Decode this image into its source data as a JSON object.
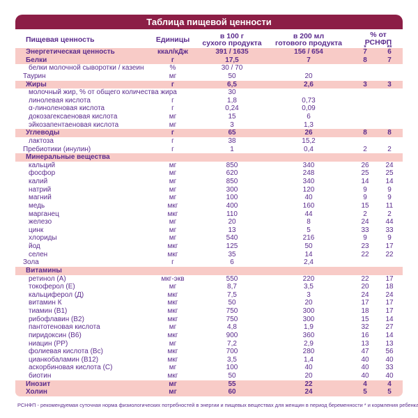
{
  "title": "Таблица пищевой ценности",
  "header": {
    "col_label": "Пищевая ценность",
    "col_units": "Единицы",
    "col_per100_line1": "в 100 г",
    "col_per100_line2": "сухого продукта",
    "col_per200_line1": "в 200 мл",
    "col_per200_line2": "готового продукта",
    "col_pct_line1": "% от",
    "col_pct_line2": "РСНФП",
    "ast1": "*",
    "ast2": "**"
  },
  "colors": {
    "banner": "#8c1e46",
    "row_highlight": "#f8cbc7",
    "text": "#5b2c8d"
  },
  "footnote": "РСНФП - рекомендуемая суточная норма физиологических потребностей в энергии и пищевых веществах для женщин в период беременности * и кормления ребенка **",
  "rows": [
    {
      "style": "group",
      "label": "Энергетическая ценность",
      "unit": "ккал/кДж",
      "v100": "391 / 1635",
      "v200": "156 / 654",
      "p1": "7",
      "p2": "6"
    },
    {
      "style": "group",
      "label": "Белки",
      "unit": "г",
      "v100": "17,5",
      "v200": "7",
      "p1": "8",
      "p2": "7"
    },
    {
      "style": "sub",
      "label": "белки молочной сыворотки / казеин",
      "unit": "%",
      "v100": "30 / 70",
      "v200": "",
      "p1": "",
      "p2": ""
    },
    {
      "style": "plain",
      "label": "Таурин",
      "unit": "мг",
      "v100": "50",
      "v200": "20",
      "p1": "",
      "p2": ""
    },
    {
      "style": "group",
      "label": "Жиры",
      "unit": "г",
      "v100": "6,5",
      "v200": "2,6",
      "p1": "3",
      "p2": "3"
    },
    {
      "style": "sub",
      "label": "молочный жир, % от общего количества жира",
      "unit": "",
      "v100": "30",
      "v200": "",
      "p1": "",
      "p2": ""
    },
    {
      "style": "sub",
      "label": "линолевая кислота",
      "unit": "г",
      "v100": "1,8",
      "v200": "0,73",
      "p1": "",
      "p2": ""
    },
    {
      "style": "sub",
      "label": "α-линоленовая кислота",
      "unit": "г",
      "v100": "0,24",
      "v200": "0,09",
      "p1": "",
      "p2": ""
    },
    {
      "style": "sub",
      "label": "докозагексаеновая кислота",
      "unit": "мг",
      "v100": "15",
      "v200": "6",
      "p1": "",
      "p2": ""
    },
    {
      "style": "sub",
      "label": "эйкозапентаеновая кислота",
      "unit": "мг",
      "v100": "3",
      "v200": "1,3",
      "p1": "",
      "p2": ""
    },
    {
      "style": "group",
      "label": "Углеводы",
      "unit": "г",
      "v100": "65",
      "v200": "26",
      "p1": "8",
      "p2": "8"
    },
    {
      "style": "sub",
      "label": "лактоза",
      "unit": "г",
      "v100": "38",
      "v200": "15,2",
      "p1": "",
      "p2": ""
    },
    {
      "style": "plain",
      "label": "Пребиотики (инулин)",
      "unit": "г",
      "v100": "1",
      "v200": "0,4",
      "p1": "2",
      "p2": "2"
    },
    {
      "style": "section",
      "label": "Минеральные вещества",
      "unit": "",
      "v100": "",
      "v200": "",
      "p1": "",
      "p2": ""
    },
    {
      "style": "sub",
      "label": "кальций",
      "unit": "мг",
      "v100": "850",
      "v200": "340",
      "p1": "26",
      "p2": "24"
    },
    {
      "style": "sub",
      "label": "фосфор",
      "unit": "мг",
      "v100": "620",
      "v200": "248",
      "p1": "25",
      "p2": "25"
    },
    {
      "style": "sub",
      "label": "калий",
      "unit": "мг",
      "v100": "850",
      "v200": "340",
      "p1": "14",
      "p2": "14"
    },
    {
      "style": "sub",
      "label": "натрий",
      "unit": "мг",
      "v100": "300",
      "v200": "120",
      "p1": "9",
      "p2": "9"
    },
    {
      "style": "sub",
      "label": "магний",
      "unit": "мг",
      "v100": "100",
      "v200": "40",
      "p1": "9",
      "p2": "9"
    },
    {
      "style": "sub",
      "label": "медь",
      "unit": "мкг",
      "v100": "400",
      "v200": "160",
      "p1": "15",
      "p2": "11"
    },
    {
      "style": "sub",
      "label": "марганец",
      "unit": "мкг",
      "v100": "110",
      "v200": "44",
      "p1": "2",
      "p2": "2"
    },
    {
      "style": "sub",
      "label": "железо",
      "unit": "мг",
      "v100": "20",
      "v200": "8",
      "p1": "24",
      "p2": "44"
    },
    {
      "style": "sub",
      "label": "цинк",
      "unit": "мг",
      "v100": "13",
      "v200": "5",
      "p1": "33",
      "p2": "33"
    },
    {
      "style": "sub",
      "label": "хлориды",
      "unit": "мг",
      "v100": "540",
      "v200": "216",
      "p1": "9",
      "p2": "9"
    },
    {
      "style": "sub",
      "label": "йод",
      "unit": "мкг",
      "v100": "125",
      "v200": "50",
      "p1": "23",
      "p2": "17"
    },
    {
      "style": "sub",
      "label": "селен",
      "unit": "мкг",
      "v100": "35",
      "v200": "14",
      "p1": "22",
      "p2": "22"
    },
    {
      "style": "plain",
      "label": "Зола",
      "unit": "г",
      "v100": "6",
      "v200": "2,4",
      "p1": "",
      "p2": ""
    },
    {
      "style": "section",
      "label": "Витамины",
      "unit": "",
      "v100": "",
      "v200": "",
      "p1": "",
      "p2": ""
    },
    {
      "style": "sub",
      "label": "ретинол (А)",
      "unit": "мкг-экв",
      "v100": "550",
      "v200": "220",
      "p1": "22",
      "p2": "17"
    },
    {
      "style": "sub",
      "label": "токоферол (Е)",
      "unit": "мг",
      "v100": "8,7",
      "v200": "3,5",
      "p1": "20",
      "p2": "18"
    },
    {
      "style": "sub",
      "label": "кальциферол (Д)",
      "unit": "мкг",
      "v100": "7,5",
      "v200": "3",
      "p1": "24",
      "p2": "24"
    },
    {
      "style": "sub",
      "label": "витамин К",
      "unit": "мкг",
      "v100": "50",
      "v200": "20",
      "p1": "17",
      "p2": "17"
    },
    {
      "style": "sub",
      "label": "тиамин (В1)",
      "unit": "мкг",
      "v100": "750",
      "v200": "300",
      "p1": "18",
      "p2": "17"
    },
    {
      "style": "sub",
      "label": "рибофлавин (В2)",
      "unit": "мкг",
      "v100": "750",
      "v200": "300",
      "p1": "15",
      "p2": "14"
    },
    {
      "style": "sub",
      "label": "пантотеновая кислота",
      "unit": "мг",
      "v100": "4,8",
      "v200": "1,9",
      "p1": "32",
      "p2": "27"
    },
    {
      "style": "sub",
      "label": "пиридоксин (В6)",
      "unit": "мкг",
      "v100": "900",
      "v200": "360",
      "p1": "16",
      "p2": "14"
    },
    {
      "style": "sub",
      "label": "ниацин (РР)",
      "unit": "мг",
      "v100": "7,2",
      "v200": "2,9",
      "p1": "13",
      "p2": "13"
    },
    {
      "style": "sub",
      "label": "фолиевая кислота (Вс)",
      "unit": "мкг",
      "v100": "700",
      "v200": "280",
      "p1": "47",
      "p2": "56"
    },
    {
      "style": "sub",
      "label": "цианкобаламин (В12)",
      "unit": "мкг",
      "v100": "3,5",
      "v200": "1,4",
      "p1": "40",
      "p2": "40"
    },
    {
      "style": "sub",
      "label": "аскорбиновая кислота (С)",
      "unit": "мг",
      "v100": "100",
      "v200": "40",
      "p1": "40",
      "p2": "33"
    },
    {
      "style": "sub",
      "label": "биотин",
      "unit": "мкг",
      "v100": "50",
      "v200": "20",
      "p1": "40",
      "p2": "40"
    },
    {
      "style": "group",
      "label": "Инозит",
      "unit": "мг",
      "v100": "55",
      "v200": "22",
      "p1": "4",
      "p2": "4"
    },
    {
      "style": "group",
      "label": "Холин",
      "unit": "мг",
      "v100": "60",
      "v200": "24",
      "p1": "5",
      "p2": "5"
    }
  ]
}
